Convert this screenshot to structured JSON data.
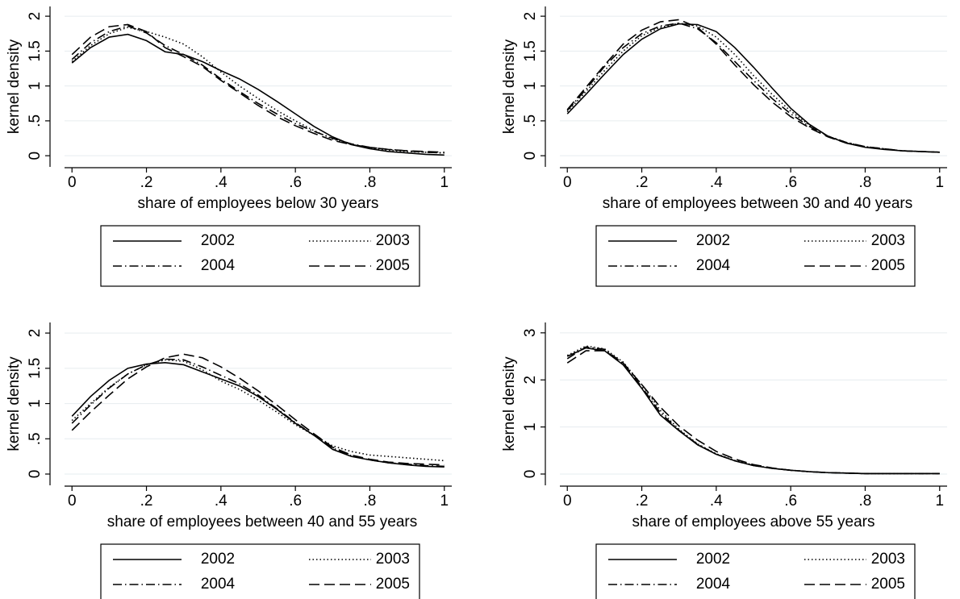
{
  "chart_data": [
    {
      "type": "line",
      "x_label": "share of employees below 30 years",
      "y_label": "kernel density",
      "x": [
        0,
        0.05,
        0.1,
        0.15,
        0.2,
        0.25,
        0.3,
        0.35,
        0.4,
        0.45,
        0.5,
        0.55,
        0.6,
        0.65,
        0.7,
        0.75,
        0.8,
        0.85,
        0.9,
        0.95,
        1
      ],
      "series": [
        {
          "name": "2002",
          "color": "#000000",
          "line_style": "solid",
          "values": [
            1.33,
            1.55,
            1.7,
            1.74,
            1.65,
            1.49,
            1.45,
            1.35,
            1.22,
            1.1,
            0.95,
            0.78,
            0.6,
            0.42,
            0.27,
            0.16,
            0.1,
            0.06,
            0.04,
            0.02,
            0.01
          ]
        },
        {
          "name": "2003",
          "color": "#000000",
          "line_style": "dotted",
          "values": [
            1.35,
            1.58,
            1.75,
            1.84,
            1.78,
            1.7,
            1.6,
            1.42,
            1.2,
            1.0,
            0.82,
            0.65,
            0.5,
            0.36,
            0.24,
            0.16,
            0.11,
            0.08,
            0.06,
            0.05,
            0.04
          ]
        },
        {
          "name": "2004",
          "color": "#000000",
          "line_style": "dashdot",
          "values": [
            1.38,
            1.62,
            1.78,
            1.86,
            1.76,
            1.58,
            1.45,
            1.3,
            1.1,
            0.92,
            0.75,
            0.6,
            0.46,
            0.35,
            0.25,
            0.17,
            0.12,
            0.09,
            0.07,
            0.05,
            0.04
          ]
        },
        {
          "name": "2005",
          "color": "#000000",
          "line_style": "dashed",
          "values": [
            1.45,
            1.7,
            1.85,
            1.88,
            1.78,
            1.55,
            1.42,
            1.28,
            1.08,
            0.9,
            0.72,
            0.56,
            0.43,
            0.32,
            0.22,
            0.16,
            0.12,
            0.09,
            0.07,
            0.06,
            0.05
          ]
        }
      ],
      "xlim": [
        -0.02,
        1.02
      ],
      "ylim": [
        -0.16,
        2.14
      ],
      "xticks": [
        0,
        {
          "value": 0.2,
          "label": ".2"
        },
        {
          "value": 0.4,
          "label": ".4"
        },
        {
          "value": 0.6,
          "label": ".6"
        },
        {
          "value": 0.8,
          "label": ".8"
        },
        1
      ],
      "yticks": [
        0,
        {
          "value": 0.5,
          "label": ".5"
        },
        1,
        1.5,
        2
      ],
      "grid": true,
      "legend": "bottom"
    },
    {
      "type": "line",
      "x_label": "share of employees between 30 and 40 years",
      "y_label": "kernel density",
      "x": [
        0,
        0.05,
        0.1,
        0.15,
        0.2,
        0.25,
        0.3,
        0.35,
        0.4,
        0.45,
        0.5,
        0.55,
        0.6,
        0.65,
        0.7,
        0.75,
        0.8,
        0.85,
        0.9,
        0.95,
        1
      ],
      "series": [
        {
          "name": "2002",
          "color": "#000000",
          "line_style": "solid",
          "values": [
            0.6,
            0.88,
            1.17,
            1.45,
            1.67,
            1.82,
            1.89,
            1.88,
            1.78,
            1.55,
            1.27,
            0.97,
            0.68,
            0.45,
            0.28,
            0.18,
            0.12,
            0.09,
            0.07,
            0.06,
            0.05
          ]
        },
        {
          "name": "2003",
          "color": "#000000",
          "line_style": "dotted",
          "values": [
            0.63,
            0.92,
            1.22,
            1.5,
            1.72,
            1.84,
            1.9,
            1.86,
            1.7,
            1.45,
            1.15,
            0.88,
            0.64,
            0.44,
            0.28,
            0.19,
            0.13,
            0.1,
            0.07,
            0.06,
            0.05
          ]
        },
        {
          "name": "2004",
          "color": "#000000",
          "line_style": "dashdot",
          "values": [
            0.65,
            0.95,
            1.28,
            1.55,
            1.75,
            1.86,
            1.9,
            1.82,
            1.62,
            1.35,
            1.08,
            0.82,
            0.6,
            0.42,
            0.28,
            0.19,
            0.13,
            0.1,
            0.07,
            0.06,
            0.05
          ]
        },
        {
          "name": "2005",
          "color": "#000000",
          "line_style": "dashed",
          "values": [
            0.66,
            0.98,
            1.3,
            1.6,
            1.8,
            1.92,
            1.95,
            1.84,
            1.6,
            1.3,
            1.02,
            0.77,
            0.56,
            0.4,
            0.27,
            0.18,
            0.13,
            0.1,
            0.07,
            0.06,
            0.05
          ]
        }
      ],
      "xlim": [
        -0.02,
        1.02
      ],
      "ylim": [
        -0.16,
        2.14
      ],
      "xticks": [
        0,
        {
          "value": 0.2,
          "label": ".2"
        },
        {
          "value": 0.4,
          "label": ".4"
        },
        {
          "value": 0.6,
          "label": ".6"
        },
        {
          "value": 0.8,
          "label": ".8"
        },
        1
      ],
      "yticks": [
        0,
        {
          "value": 0.5,
          "label": ".5"
        },
        1,
        1.5,
        2
      ],
      "grid": true,
      "legend": "bottom"
    },
    {
      "type": "line",
      "x_label": "share of employees between 40 and 55 years",
      "y_label": "kernel density",
      "x": [
        0,
        0.05,
        0.1,
        0.15,
        0.2,
        0.25,
        0.3,
        0.35,
        0.4,
        0.45,
        0.5,
        0.55,
        0.6,
        0.65,
        0.7,
        0.75,
        0.8,
        0.85,
        0.9,
        0.95,
        1
      ],
      "series": [
        {
          "name": "2002",
          "color": "#000000",
          "line_style": "solid",
          "values": [
            0.82,
            1.1,
            1.33,
            1.5,
            1.56,
            1.58,
            1.55,
            1.45,
            1.35,
            1.25,
            1.1,
            0.92,
            0.72,
            0.55,
            0.35,
            0.25,
            0.2,
            0.16,
            0.13,
            0.11,
            0.1
          ]
        },
        {
          "name": "2003",
          "color": "#000000",
          "line_style": "dotted",
          "values": [
            0.76,
            1.0,
            1.23,
            1.42,
            1.55,
            1.62,
            1.6,
            1.48,
            1.32,
            1.2,
            1.05,
            0.88,
            0.7,
            0.55,
            0.4,
            0.32,
            0.27,
            0.25,
            0.23,
            0.21,
            0.19
          ]
        },
        {
          "name": "2004",
          "color": "#000000",
          "line_style": "dashdot",
          "values": [
            0.72,
            0.98,
            1.22,
            1.42,
            1.55,
            1.63,
            1.62,
            1.52,
            1.4,
            1.28,
            1.12,
            0.93,
            0.73,
            0.55,
            0.37,
            0.26,
            0.2,
            0.16,
            0.14,
            0.12,
            0.11
          ]
        },
        {
          "name": "2005",
          "color": "#000000",
          "line_style": "dashed",
          "values": [
            0.62,
            0.88,
            1.12,
            1.35,
            1.52,
            1.65,
            1.7,
            1.65,
            1.52,
            1.36,
            1.18,
            0.98,
            0.77,
            0.57,
            0.38,
            0.27,
            0.21,
            0.17,
            0.15,
            0.14,
            0.13
          ]
        }
      ],
      "xlim": [
        -0.02,
        1.02
      ],
      "ylim": [
        -0.16,
        2.15
      ],
      "xticks": [
        0,
        {
          "value": 0.2,
          "label": ".2"
        },
        {
          "value": 0.4,
          "label": ".4"
        },
        {
          "value": 0.6,
          "label": ".6"
        },
        {
          "value": 0.8,
          "label": ".8"
        },
        1
      ],
      "yticks": [
        0,
        {
          "value": 0.5,
          "label": ".5"
        },
        1,
        1.5,
        2
      ],
      "grid": true,
      "legend": "bottom"
    },
    {
      "type": "line",
      "x_label": "share of employees above 55 years",
      "y_label": "kernel density",
      "x": [
        0,
        0.05,
        0.1,
        0.15,
        0.2,
        0.25,
        0.3,
        0.35,
        0.4,
        0.45,
        0.5,
        0.55,
        0.6,
        0.65,
        0.7,
        0.75,
        0.8,
        0.85,
        0.9,
        0.95,
        1
      ],
      "series": [
        {
          "name": "2002",
          "color": "#000000",
          "line_style": "solid",
          "values": [
            2.5,
            2.68,
            2.62,
            2.32,
            1.82,
            1.25,
            0.92,
            0.62,
            0.42,
            0.28,
            0.18,
            0.12,
            0.08,
            0.05,
            0.03,
            0.02,
            0.01,
            0.01,
            0.01,
            0.01,
            0.01
          ]
        },
        {
          "name": "2003",
          "color": "#000000",
          "line_style": "dotted",
          "values": [
            2.52,
            2.72,
            2.66,
            2.38,
            1.9,
            1.35,
            0.95,
            0.64,
            0.43,
            0.29,
            0.19,
            0.12,
            0.08,
            0.05,
            0.03,
            0.02,
            0.01,
            0.01,
            0.01,
            0.01,
            0.01
          ]
        },
        {
          "name": "2004",
          "color": "#000000",
          "line_style": "dashdot",
          "values": [
            2.45,
            2.7,
            2.65,
            2.35,
            1.85,
            1.3,
            0.93,
            0.63,
            0.42,
            0.28,
            0.18,
            0.12,
            0.08,
            0.05,
            0.03,
            0.02,
            0.01,
            0.01,
            0.01,
            0.01,
            0.01
          ]
        },
        {
          "name": "2005",
          "color": "#000000",
          "line_style": "dashed",
          "values": [
            2.36,
            2.62,
            2.62,
            2.36,
            1.9,
            1.42,
            1.02,
            0.72,
            0.48,
            0.32,
            0.2,
            0.13,
            0.08,
            0.05,
            0.03,
            0.02,
            0.01,
            0.01,
            0.01,
            0.01,
            0.01
          ]
        }
      ],
      "xlim": [
        -0.02,
        1.02
      ],
      "ylim": [
        -0.24,
        3.22
      ],
      "xticks": [
        0,
        {
          "value": 0.2,
          "label": ".2"
        },
        {
          "value": 0.4,
          "label": ".4"
        },
        {
          "value": 0.6,
          "label": ".6"
        },
        {
          "value": 0.8,
          "label": ".8"
        },
        1
      ],
      "yticks": [
        0,
        1,
        2,
        3
      ],
      "grid": true,
      "legend": "bottom"
    }
  ]
}
